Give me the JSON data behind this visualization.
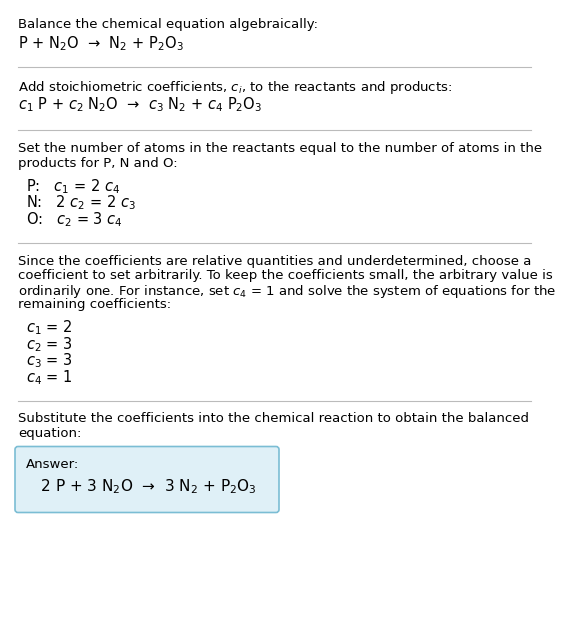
{
  "title": "Balance the chemical equation algebraically:",
  "equation1": "P + N$_2$O  →  N$_2$ + P$_2$O$_3$",
  "section2_header": "Add stoichiometric coefficients, $c_i$, to the reactants and products:",
  "equation2": "$c_1$ P + $c_2$ N$_2$O  →  $c_3$ N$_2$ + $c_4$ P$_2$O$_3$",
  "section3_header_line1": "Set the number of atoms in the reactants equal to the number of atoms in the",
  "section3_header_line2": "products for P, N and O:",
  "atom_P": "P:   $c_1$ = 2 $c_4$",
  "atom_N": "N:   2 $c_2$ = 2 $c_3$",
  "atom_O": "O:   $c_2$ = 3 $c_4$",
  "section4_line1": "Since the coefficients are relative quantities and underdetermined, choose a",
  "section4_line2": "coefficient to set arbitrarily. To keep the coefficients small, the arbitrary value is",
  "section4_line3": "ordinarily one. For instance, set $c_4$ = 1 and solve the system of equations for the",
  "section4_line4": "remaining coefficients:",
  "coeff1": "$c_1$ = 2",
  "coeff2": "$c_2$ = 3",
  "coeff3": "$c_3$ = 3",
  "coeff4": "$c_4$ = 1",
  "section5_line1": "Substitute the coefficients into the chemical reaction to obtain the balanced",
  "section5_line2": "equation:",
  "answer_label": "Answer:",
  "answer_eq": "   2 P + 3 N$_2$O  →  3 N$_2$ + P$_2$O$_3$",
  "bg_color": "#ffffff",
  "text_color": "#000000",
  "answer_box_color": "#dff0f7",
  "answer_box_border": "#7bbdd4",
  "fs_body": 9.5,
  "fs_eq": 10.5
}
